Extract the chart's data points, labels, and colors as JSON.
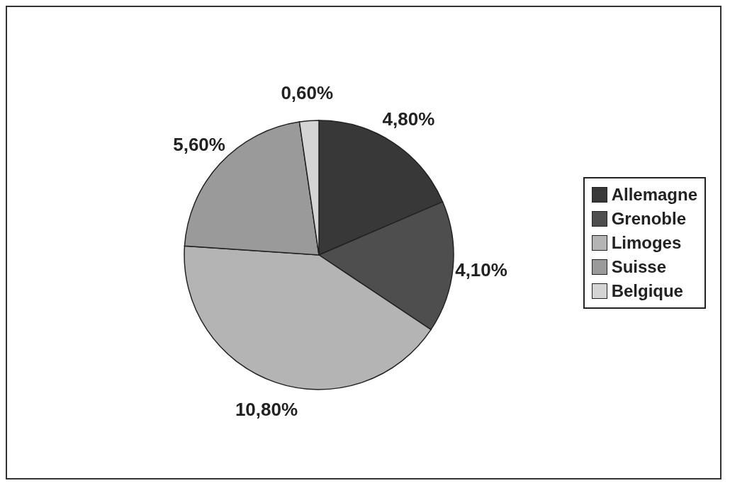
{
  "chart_data": {
    "type": "pie",
    "categories": [
      "Allemagne",
      "Grenoble",
      "Limoges",
      "Suisse",
      "Belgique"
    ],
    "values": [
      4.8,
      4.1,
      10.8,
      5.6,
      0.6
    ],
    "colors": [
      "#383838",
      "#4e4e4e",
      "#b4b4b4",
      "#9a9a9a",
      "#d4d4d4"
    ],
    "value_labels": [
      "4,80%",
      "4,10%",
      "10,80%",
      "5,60%",
      "0,60%"
    ],
    "legend": "right"
  }
}
